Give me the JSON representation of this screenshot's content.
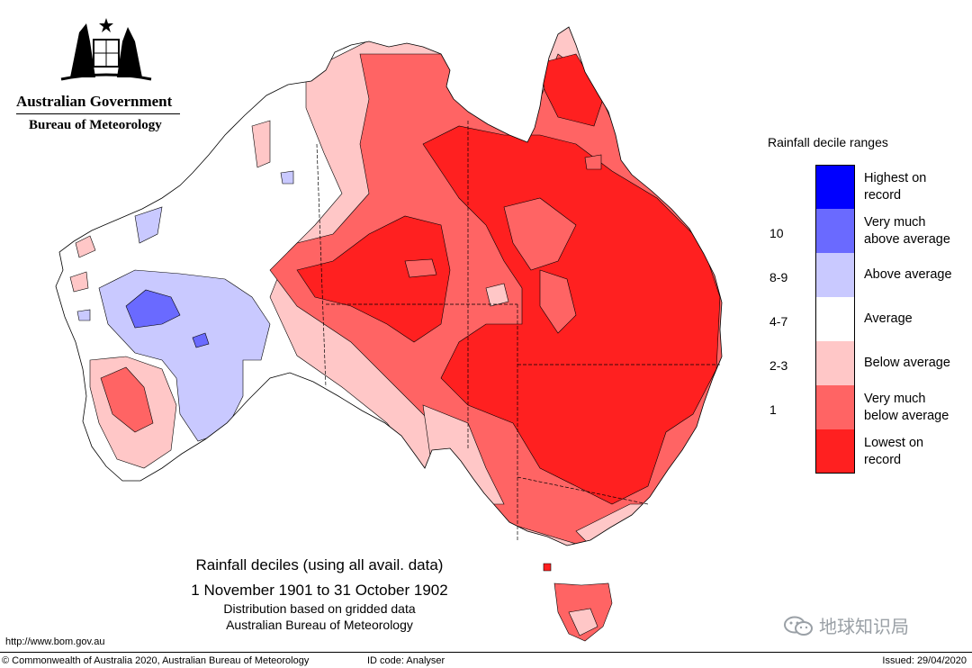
{
  "branding": {
    "government": "Australian Government",
    "bureau": "Bureau of Meteorology"
  },
  "legend": {
    "title": "Rainfall decile ranges",
    "items": [
      {
        "label_line1": "Highest on",
        "label_line2": "record",
        "color": "#0000ff"
      },
      {
        "label_line1": "Very much",
        "label_line2": "above average",
        "color": "#6a6aff"
      },
      {
        "label_line1": "Above average",
        "label_line2": "",
        "color": "#c9c9ff"
      },
      {
        "label_line1": "Average",
        "label_line2": "",
        "color": "#ffffff"
      },
      {
        "label_line1": "Below average",
        "label_line2": "",
        "color": "#ffc7c7"
      },
      {
        "label_line1": "Very much",
        "label_line2": "below average",
        "color": "#ff6464"
      },
      {
        "label_line1": "Lowest on",
        "label_line2": "record",
        "color": "#ff2020"
      }
    ],
    "decile_labels": [
      "10",
      "8-9",
      "4-7",
      "2-3",
      "1"
    ]
  },
  "caption": {
    "line1": "Rainfall deciles (using all avail. data)",
    "line2": "1 November 1901 to 31 October 1902",
    "line3": "Distribution based on gridded data",
    "line4": "Australian Bureau of Meteorology"
  },
  "footer": {
    "url": "http://www.bom.gov.au",
    "copyright": "© Commonwealth of Australia 2020, Australian Bureau of Meteorology",
    "id_code": "ID code: Analyser",
    "issued": "Issued: 29/04/2020"
  },
  "watermark": {
    "text": "地球知识局"
  }
}
